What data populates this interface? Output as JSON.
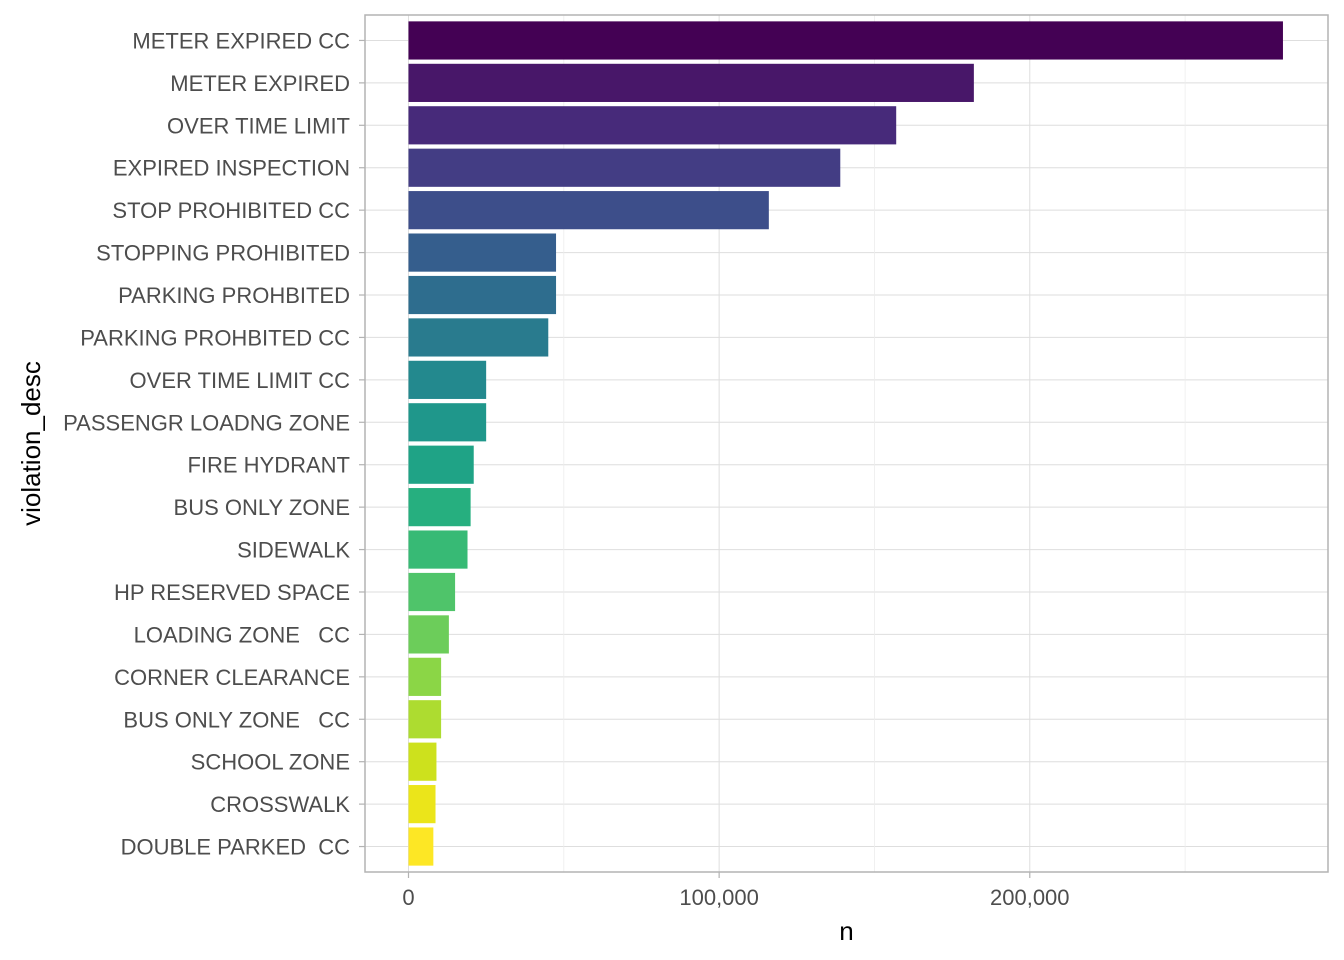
{
  "chart_data": {
    "type": "bar",
    "orientation": "horizontal",
    "title": "",
    "xlabel": "n",
    "ylabel": "violation_desc",
    "xlim": [
      -14000,
      296000
    ],
    "x_ticks": [
      0,
      100000,
      200000
    ],
    "x_tick_labels": [
      "0",
      "100,000",
      "200,000"
    ],
    "grid": true,
    "legend": "none",
    "categories": [
      "METER EXPIRED CC",
      "METER EXPIRED",
      "OVER TIME LIMIT",
      "EXPIRED INSPECTION",
      "STOP PROHIBITED CC",
      "STOPPING PROHIBITED",
      "PARKING PROHBITED",
      "PARKING PROHBITED CC",
      "OVER TIME LIMIT CC",
      "PASSENGR LOADNG ZONE",
      "FIRE HYDRANT",
      "BUS ONLY ZONE",
      "SIDEWALK",
      "HP RESERVED SPACE",
      "LOADING ZONE   CC",
      "CORNER CLEARANCE",
      "BUS ONLY ZONE   CC",
      "SCHOOL ZONE",
      "CROSSWALK",
      "DOUBLE PARKED  CC"
    ],
    "values": [
      281500,
      182000,
      157000,
      139000,
      116000,
      47500,
      47500,
      45000,
      25000,
      25000,
      21000,
      20000,
      19000,
      15000,
      13000,
      10500,
      10500,
      9000,
      8700,
      8000
    ],
    "colors": [
      "#440154",
      "#481A6C",
      "#472F7D",
      "#414487",
      "#39568C",
      "#31688E",
      "#2A788E",
      "#23888E",
      "#1F988B",
      "#22A884",
      "#35B779",
      "#54C568",
      "#7AD151",
      "#A5DB36",
      "#D2E21B",
      "#FDE725",
      "#2F6B8E",
      "#2C728E",
      "#27808E",
      "#20A486"
    ]
  }
}
